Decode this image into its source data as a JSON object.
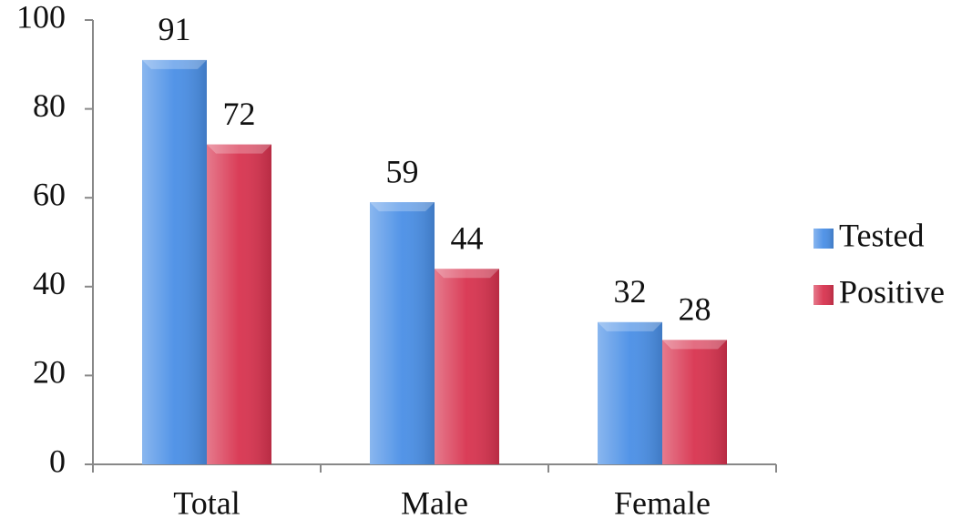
{
  "chart_data": {
    "type": "bar",
    "categories": [
      "Total",
      "Male",
      "Female"
    ],
    "series": [
      {
        "name": "Tested",
        "color": "#4a8fe6",
        "values": [
          91,
          59,
          32
        ]
      },
      {
        "name": "Positive",
        "color": "#d8334f",
        "values": [
          72,
          44,
          28
        ]
      }
    ],
    "ylim": [
      0,
      100
    ],
    "yticks": [
      0,
      20,
      40,
      60,
      80,
      100
    ],
    "grid": false,
    "legend": "right"
  }
}
